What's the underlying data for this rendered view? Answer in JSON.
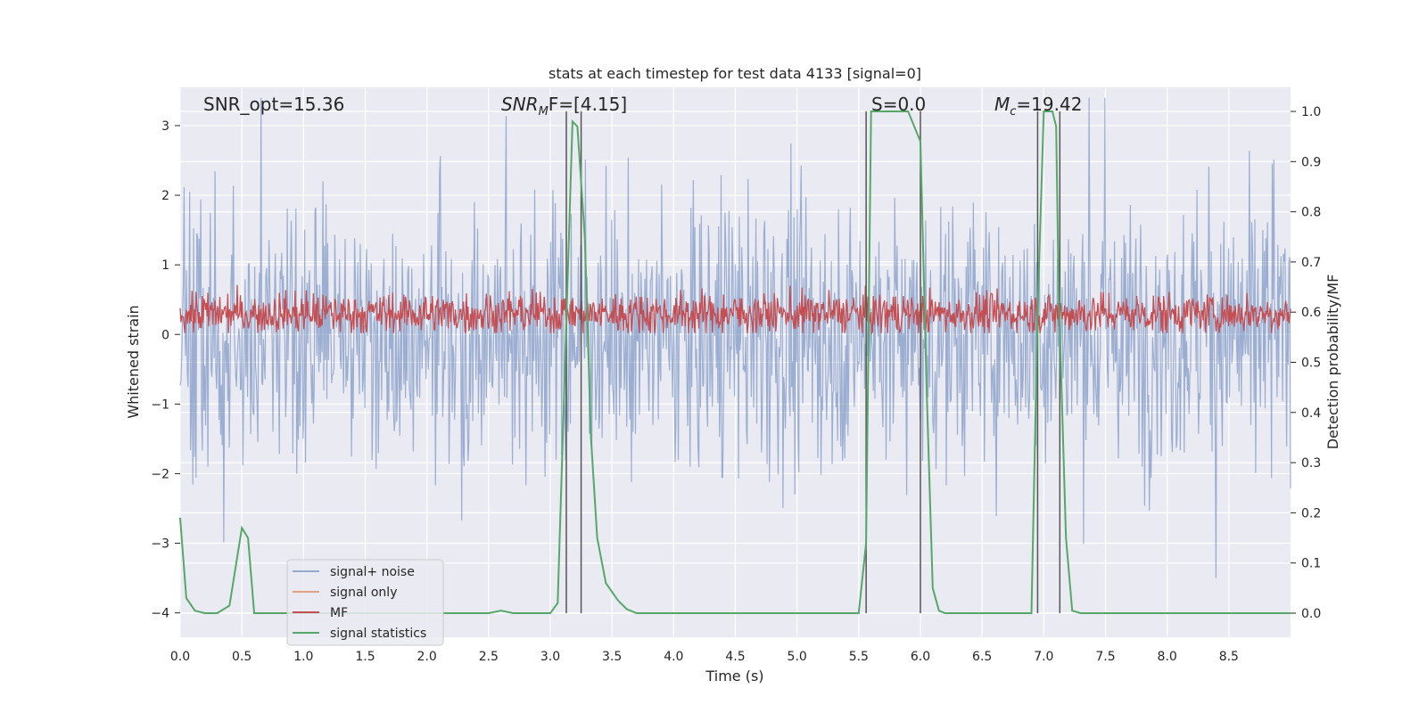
{
  "chart_data": {
    "type": "line",
    "title": "stats at each timestep for test data 4133 [signal=0]",
    "xlabel": "Time (s)",
    "ylabel": "Whitened strain",
    "ylabel_right": "Detection probability/MF",
    "xlim": [
      0.0,
      9.0
    ],
    "ylim": [
      -4.35,
      3.55
    ],
    "ylim_right": [
      -0.048,
      1.048
    ],
    "x_ticks": [
      "0.0",
      "0.5",
      "1.0",
      "1.5",
      "2.0",
      "2.5",
      "3.0",
      "3.5",
      "4.0",
      "4.5",
      "5.0",
      "5.5",
      "6.0",
      "6.5",
      "7.0",
      "7.5",
      "8.0",
      "8.5"
    ],
    "y_ticks": [
      "3",
      "2",
      "1",
      "0",
      "−1",
      "−2",
      "−3",
      "−4"
    ],
    "y_ticks_right": [
      "1.0",
      "0.9",
      "0.8",
      "0.7",
      "0.6",
      "0.5",
      "0.4",
      "0.3",
      "0.2",
      "0.1",
      "0.0"
    ],
    "grid": true,
    "legend_position": "lower-left",
    "colors": {
      "plot_bg": "#eaeaf2",
      "signal_noise": "#4c72b0",
      "signal_only": "#dd8452",
      "mf": "#c44e52",
      "stats": "#55a868",
      "vline": "#555555"
    },
    "annotations": {
      "snr_opt": "SNR_opt=15.36",
      "snr_mf_prefix": "SNR",
      "snr_mf_sub": "M",
      "snr_mf_suffix": "F=[4.15]",
      "s_label": "S=0.0",
      "mc_prefix": "M",
      "mc_sub": "c",
      "mc_suffix": "=19.42"
    },
    "series": [
      {
        "name": "signal+ noise",
        "description": "whitened strain, noise fluctuating roughly between -3.5 and 3.4"
      },
      {
        "name": "signal only",
        "values": []
      },
      {
        "name": "MF",
        "description": "matched filter output roughly between 0.0 and 0.95"
      },
      {
        "name": "signal statistics",
        "x": [
          0.0,
          0.05,
          0.12,
          0.2,
          0.3,
          0.4,
          0.5,
          0.55,
          0.6,
          0.65,
          1.0,
          2.0,
          2.5,
          2.6,
          2.7,
          3.0,
          3.06,
          3.12,
          3.18,
          3.22,
          3.28,
          3.33,
          3.38,
          3.45,
          3.55,
          3.62,
          3.7,
          3.8,
          4.0,
          5.0,
          5.5,
          5.56,
          5.6,
          5.7,
          5.9,
          6.0,
          6.05,
          6.1,
          6.15,
          6.2,
          6.5,
          6.9,
          6.95,
          7.0,
          7.07,
          7.1,
          7.12,
          7.18,
          7.23,
          7.3,
          8.0,
          9.0
        ],
        "values": [
          0.19,
          0.03,
          0.005,
          0.0,
          0.0,
          0.015,
          0.17,
          0.15,
          0.0,
          0.0,
          0.0,
          0.0,
          0.0,
          0.005,
          0.0,
          0.0,
          0.02,
          0.5,
          0.98,
          0.97,
          0.75,
          0.35,
          0.15,
          0.06,
          0.025,
          0.008,
          0.0,
          0.0,
          0.0,
          0.0,
          0.0,
          0.14,
          1.0,
          1.0,
          1.0,
          0.94,
          0.45,
          0.05,
          0.005,
          0.0,
          0.0,
          0.0,
          0.6,
          1.0,
          1.0,
          0.97,
          0.65,
          0.15,
          0.005,
          0.0,
          0.0,
          0.0
        ]
      }
    ],
    "vertical_lines_x": [
      3.13,
      3.25,
      5.56,
      6.0,
      6.95,
      7.13
    ],
    "legend": {
      "entries": [
        "signal+ noise",
        "signal only",
        "MF",
        "signal statistics"
      ]
    }
  }
}
